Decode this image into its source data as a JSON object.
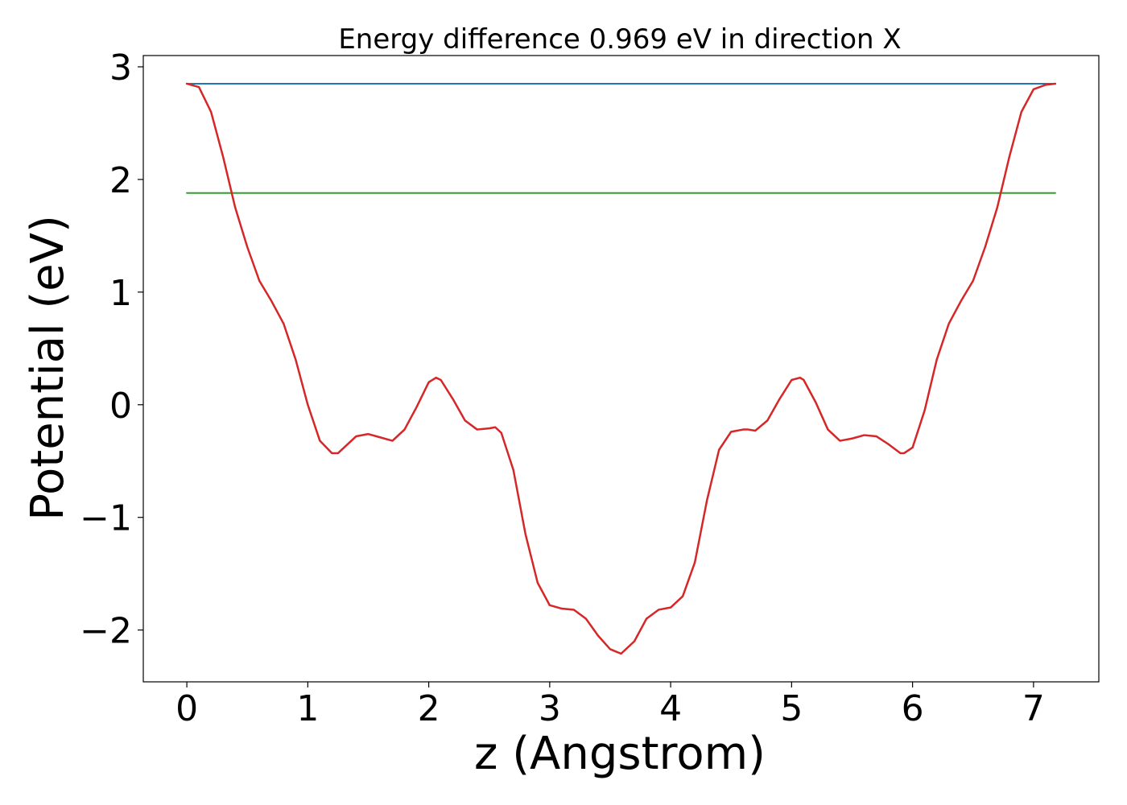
{
  "chart_data": {
    "type": "line",
    "title": "Energy difference 0.969 eV in direction X",
    "xlabel": "z (Angstrom)",
    "ylabel": "Potential (eV)",
    "xlim": [
      -0.36,
      7.54
    ],
    "ylim": [
      -2.46,
      3.1
    ],
    "xticks": [
      0,
      1,
      2,
      3,
      4,
      5,
      6,
      7
    ],
    "yticks": [
      -2,
      -1,
      0,
      1,
      2,
      3
    ],
    "xtick_labels": [
      "0",
      "1",
      "2",
      "3",
      "4",
      "5",
      "6",
      "7"
    ],
    "ytick_labels": [
      "−2",
      "−1",
      "0",
      "1",
      "2",
      "3"
    ],
    "grid": false,
    "legend": "none",
    "series": [
      {
        "color": "#1f77b4",
        "x": [
          0,
          7.18
        ],
        "y": [
          2.85,
          2.85
        ]
      },
      {
        "color": "#2ca02c",
        "x": [
          0,
          7.18
        ],
        "y": [
          1.88,
          1.88
        ]
      },
      {
        "color": "#d62728",
        "x": [
          0,
          0.1,
          0.2,
          0.3,
          0.4,
          0.5,
          0.6,
          0.7,
          0.8,
          0.9,
          1.0,
          1.1,
          1.2,
          1.25,
          1.3,
          1.4,
          1.5,
          1.6,
          1.7,
          1.8,
          1.9,
          2.0,
          2.06,
          2.1,
          2.2,
          2.3,
          2.4,
          2.5,
          2.55,
          2.6,
          2.7,
          2.8,
          2.9,
          3.0,
          3.1,
          3.2,
          3.3,
          3.4,
          3.5,
          3.59,
          3.7,
          3.8,
          3.9,
          4.0,
          4.1,
          4.2,
          4.3,
          4.4,
          4.5,
          4.6,
          4.64,
          4.7,
          4.8,
          4.9,
          5.0,
          5.07,
          5.1,
          5.2,
          5.3,
          5.4,
          5.5,
          5.6,
          5.7,
          5.8,
          5.9,
          5.93,
          6.0,
          6.1,
          6.2,
          6.3,
          6.4,
          6.5,
          6.6,
          6.7,
          6.8,
          6.9,
          7.0,
          7.1,
          7.18
        ],
        "y": [
          2.85,
          2.82,
          2.6,
          2.2,
          1.75,
          1.4,
          1.1,
          0.92,
          0.72,
          0.4,
          0.0,
          -0.32,
          -0.43,
          -0.43,
          -0.38,
          -0.28,
          -0.26,
          -0.29,
          -0.32,
          -0.22,
          -0.02,
          0.2,
          0.24,
          0.22,
          0.05,
          -0.14,
          -0.22,
          -0.21,
          -0.2,
          -0.25,
          -0.58,
          -1.15,
          -1.58,
          -1.78,
          -1.81,
          -1.82,
          -1.9,
          -2.05,
          -2.17,
          -2.21,
          -2.1,
          -1.9,
          -1.82,
          -1.8,
          -1.7,
          -1.4,
          -0.85,
          -0.4,
          -0.24,
          -0.22,
          -0.22,
          -0.23,
          -0.14,
          0.05,
          0.22,
          0.24,
          0.22,
          0.02,
          -0.22,
          -0.32,
          -0.3,
          -0.27,
          -0.28,
          -0.35,
          -0.43,
          -0.43,
          -0.38,
          -0.05,
          0.4,
          0.72,
          0.92,
          1.1,
          1.4,
          1.75,
          2.2,
          2.6,
          2.8,
          2.84,
          2.85
        ]
      }
    ]
  }
}
